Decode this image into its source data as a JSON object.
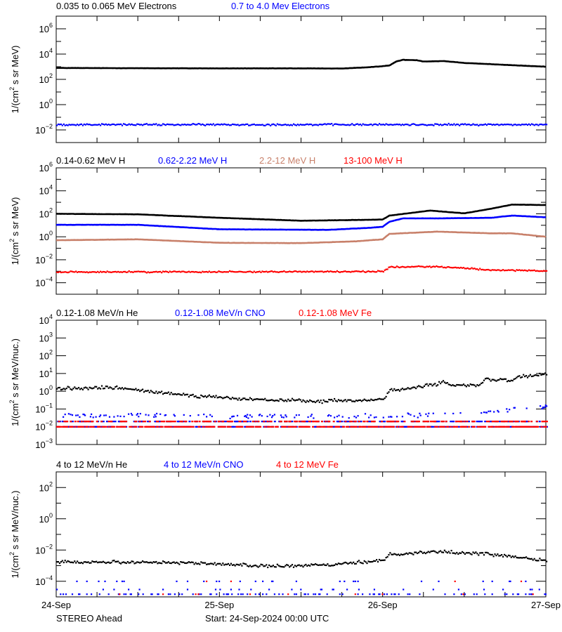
{
  "footer": {
    "spacecraft": "STEREO Ahead",
    "start": "Start: 24-Sep-2024 00:00 UTC"
  },
  "xaxis": {
    "xlim": [
      "2024-09-24 00:00",
      "2024-09-27 00:00"
    ],
    "tick_labels": [
      {
        "t": "2024-09-24 00:00",
        "label": "24-Sep"
      },
      {
        "t": "2024-09-25 00:00",
        "label": "25-Sep"
      },
      {
        "t": "2024-09-26 00:00",
        "label": "26-Sep"
      },
      {
        "t": "2024-09-27 00:00",
        "label": "27-Sep"
      }
    ],
    "minor_tick_hours": 6
  },
  "chart_data": [
    {
      "type": "scatter",
      "yscale": "log",
      "ylabel": {
        "pre": "1/(cm",
        "sup": "2",
        "post": " s sr MeV)"
      },
      "ylim": [
        0.001,
        10000000
      ],
      "yticks": [
        0.01,
        1,
        100,
        10000,
        1000000
      ],
      "yminor": [
        0.001,
        0.1,
        10,
        1000,
        100000,
        10000000
      ],
      "series": [
        {
          "name": "0.035 to 0.065 MeV Electrons",
          "color": "#000000",
          "marker": "line",
          "points": [
            [
              "2024-09-24 00:00",
              800
            ],
            [
              "2024-09-24 12:00",
              760
            ],
            [
              "2024-09-25 00:00",
              740
            ],
            [
              "2024-09-25 12:00",
              740
            ],
            [
              "2024-09-25 18:00",
              720
            ],
            [
              "2024-09-25 21:00",
              850
            ],
            [
              "2024-09-26 00:00",
              1100
            ],
            [
              "2024-09-26 01:00",
              1250
            ],
            [
              "2024-09-26 02:00",
              2600
            ],
            [
              "2024-09-26 03:00",
              3500
            ],
            [
              "2024-09-26 05:00",
              3300
            ],
            [
              "2024-09-26 06:00",
              2600
            ],
            [
              "2024-09-26 09:00",
              2800
            ],
            [
              "2024-09-26 12:00",
              2000
            ],
            [
              "2024-09-26 18:00",
              1400
            ],
            [
              "2024-09-27 00:00",
              1000
            ]
          ]
        },
        {
          "name": "0.7 to 4.0 Mev Electrons",
          "color": "#0000ff",
          "marker": "dots",
          "points": [
            [
              "2024-09-24 00:00",
              0.03
            ],
            [
              "2024-09-27 00:00",
              0.03
            ]
          ]
        }
      ]
    },
    {
      "type": "scatter",
      "yscale": "log",
      "ylabel": {
        "pre": "1/(cm",
        "sup": "2",
        "post": " s sr MeV)"
      },
      "ylim": [
        1e-05,
        1000000
      ],
      "yticks": [
        0.0001,
        0.01,
        1,
        100,
        10000,
        1000000
      ],
      "yminor": [
        0.001,
        0.1,
        10,
        1000,
        100000
      ],
      "series": [
        {
          "name": "0.14-0.62 MeV H",
          "color": "#000000",
          "marker": "line",
          "points": [
            [
              "2024-09-24 00:00",
              100
            ],
            [
              "2024-09-24 12:00",
              90
            ],
            [
              "2024-09-25 00:00",
              45
            ],
            [
              "2024-09-25 12:00",
              25
            ],
            [
              "2024-09-25 22:00",
              30
            ],
            [
              "2024-09-26 00:00",
              32
            ],
            [
              "2024-09-26 01:00",
              70
            ],
            [
              "2024-09-26 07:00",
              190
            ],
            [
              "2024-09-26 12:00",
              110
            ],
            [
              "2024-09-26 16:00",
              280
            ],
            [
              "2024-09-26 19:00",
              630
            ],
            [
              "2024-09-27 00:00",
              580
            ]
          ]
        },
        {
          "name": "0.62-2.22 MeV H",
          "color": "#0000ff",
          "marker": "line",
          "points": [
            [
              "2024-09-24 00:00",
              11
            ],
            [
              "2024-09-24 12:00",
              11
            ],
            [
              "2024-09-25 00:00",
              4.5
            ],
            [
              "2024-09-25 16:00",
              4
            ],
            [
              "2024-09-25 22:00",
              6
            ],
            [
              "2024-09-26 00:00",
              7.4
            ],
            [
              "2024-09-26 01:00",
              20
            ],
            [
              "2024-09-26 03:00",
              40
            ],
            [
              "2024-09-26 08:00",
              40
            ],
            [
              "2024-09-26 16:00",
              45
            ],
            [
              "2024-09-26 19:00",
              70
            ],
            [
              "2024-09-27 00:00",
              50
            ]
          ]
        },
        {
          "name": "2.2-12 MeV H",
          "color": "#c8806a",
          "marker": "line",
          "points": [
            [
              "2024-09-24 00:00",
              0.5
            ],
            [
              "2024-09-24 12:00",
              0.6
            ],
            [
              "2024-09-25 00:00",
              0.3
            ],
            [
              "2024-09-25 12:00",
              0.28
            ],
            [
              "2024-09-25 20:00",
              0.4
            ],
            [
              "2024-09-26 00:00",
              0.6
            ],
            [
              "2024-09-26 01:00",
              1.8
            ],
            [
              "2024-09-26 08:00",
              2.8
            ],
            [
              "2024-09-26 16:00",
              2.0
            ],
            [
              "2024-09-26 19:00",
              2.0
            ],
            [
              "2024-09-27 00:00",
              1.0
            ]
          ]
        },
        {
          "name": "13-100 MeV H",
          "color": "#ff0000",
          "marker": "dots",
          "points": [
            [
              "2024-09-24 00:00",
              0.001
            ],
            [
              "2024-09-26 00:00",
              0.0011
            ],
            [
              "2024-09-26 01:00",
              0.0028
            ],
            [
              "2024-09-26 08:00",
              0.003
            ],
            [
              "2024-09-26 16:00",
              0.0015
            ],
            [
              "2024-09-27 00:00",
              0.0012
            ]
          ]
        }
      ]
    },
    {
      "type": "scatter",
      "yscale": "log",
      "ylabel": {
        "pre": "1/(cm",
        "sup": "2",
        "post": " s sr MeV/nuc.)"
      },
      "ylim": [
        0.001,
        10000
      ],
      "yticks": [
        0.001,
        0.01,
        0.1,
        1,
        10,
        100,
        1000,
        10000
      ],
      "yminor": [],
      "series": [
        {
          "name": "0.12-1.08 MeV/n He",
          "color": "#000000",
          "marker": "dots",
          "points": [
            [
              "2024-09-24 00:00",
              1.5
            ],
            [
              "2024-09-24 08:00",
              1.8
            ],
            [
              "2024-09-24 10:00",
              1.5
            ],
            [
              "2024-09-24 17:00",
              0.8
            ],
            [
              "2024-09-25 03:00",
              0.4
            ],
            [
              "2024-09-25 14:00",
              0.3
            ],
            [
              "2024-09-25 22:00",
              0.35
            ],
            [
              "2024-09-26 00:00",
              0.4
            ],
            [
              "2024-09-26 01:00",
              1.2
            ],
            [
              "2024-09-26 06:00",
              2.2
            ],
            [
              "2024-09-26 08:00",
              2.6
            ],
            [
              "2024-09-26 09:00",
              4
            ],
            [
              "2024-09-26 10:00",
              2.2
            ],
            [
              "2024-09-26 14:00",
              2.4
            ],
            [
              "2024-09-26 15:00",
              5
            ],
            [
              "2024-09-26 19:00",
              4.5
            ],
            [
              "2024-09-26 20:00",
              7
            ],
            [
              "2024-09-27 00:00",
              10
            ]
          ]
        },
        {
          "name": "0.12-1.08 MeV/n CNO",
          "color": "#0000ff",
          "marker": "sparse",
          "levels": [
            0.01,
            0.02
          ],
          "points": [
            [
              "2024-09-24 00:00",
              0.05
            ],
            [
              "2024-09-26 00:00",
              0.04
            ],
            [
              "2024-09-26 12:00",
              0.06
            ],
            [
              "2024-09-27 00:00",
              0.15
            ]
          ]
        },
        {
          "name": "0.12-1.08 MeV Fe",
          "color": "#ff0000",
          "marker": "sparse",
          "levels": [
            0.01,
            0.02
          ],
          "points": []
        }
      ]
    },
    {
      "type": "scatter",
      "yscale": "log",
      "ylabel": {
        "pre": "1/(cm",
        "sup": "2",
        "post": " s sr MeV/nuc.)"
      },
      "ylim": [
        1e-05,
        1000
      ],
      "yticks": [
        0.0001,
        0.01,
        1,
        100
      ],
      "yminor": [
        0.001,
        0.1,
        10
      ],
      "series": [
        {
          "name": "4 to 12 MeV/n He",
          "color": "#000000",
          "marker": "dots",
          "points": [
            [
              "2024-09-24 00:00",
              0.002
            ],
            [
              "2024-09-24 17:00",
              0.0018
            ],
            [
              "2024-09-25 09:00",
              0.001
            ],
            [
              "2024-09-25 17:00",
              0.0013
            ],
            [
              "2024-09-26 00:00",
              0.0025
            ],
            [
              "2024-09-26 01:00",
              0.006
            ],
            [
              "2024-09-26 08:00",
              0.009
            ],
            [
              "2024-09-26 12:00",
              0.007
            ],
            [
              "2024-09-26 16:00",
              0.006
            ],
            [
              "2024-09-27 00:00",
              0.0025
            ]
          ]
        },
        {
          "name": "4 to 12 MeV/n CNO",
          "color": "#0000ff",
          "marker": "sparse",
          "levels": [
            1.5e-05,
            3e-05,
            0.0001
          ],
          "points": []
        },
        {
          "name": "4 to 12 MeV Fe",
          "color": "#ff0000",
          "marker": "sparse",
          "levels": [
            1.5e-05,
            0.0001
          ],
          "points": []
        }
      ]
    }
  ]
}
